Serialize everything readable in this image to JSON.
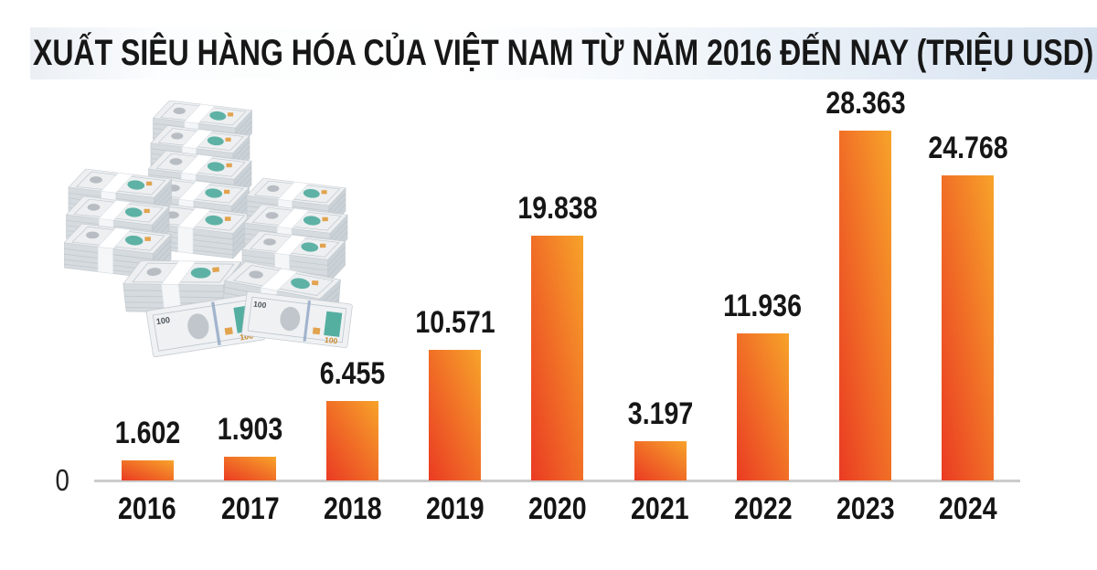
{
  "title": {
    "text": "XUẤT SIÊU HÀNG HÓA CỦA VIỆT NAM TỪ NĂM 2016 ĐẾN NAY (TRIỆU USD)"
  },
  "axis": {
    "zero_label": "0"
  },
  "decor": {
    "money_image": "stacks-of-us-100-dollar-bill-bundles"
  },
  "colors": {
    "bar_top": "#F7A32A",
    "bar_bottom": "#EA3B23",
    "axis_line": "#CBCBCB",
    "title_band_left": "#EBEFF4",
    "title_band_right": "#D6E2F0",
    "text": "#1A1A1A"
  },
  "chart_data": {
    "type": "bar",
    "title": "XUẤT SIÊU HÀNG HÓA CỦA VIỆT NAM TỪ NĂM 2016 ĐẾN NAY (TRIỆU USD)",
    "unit": "TRIỆU USD",
    "categories": [
      "2016",
      "2017",
      "2018",
      "2019",
      "2020",
      "2021",
      "2022",
      "2023",
      "2024"
    ],
    "values": [
      1602,
      1903,
      6455,
      10571,
      19838,
      3197,
      11936,
      28363,
      24768
    ],
    "value_labels": [
      "1.602",
      "1.903",
      "6.455",
      "10.571",
      "19.838",
      "3.197",
      "11.936",
      "28.363",
      "24.768"
    ],
    "xlabel": "",
    "ylabel": "",
    "ylim": [
      0,
      28363
    ],
    "y_ticks_shown": [
      "0"
    ],
    "grid": false,
    "legend": false,
    "bar_gradient": [
      "#EA3B23",
      "#F7A32A"
    ]
  }
}
